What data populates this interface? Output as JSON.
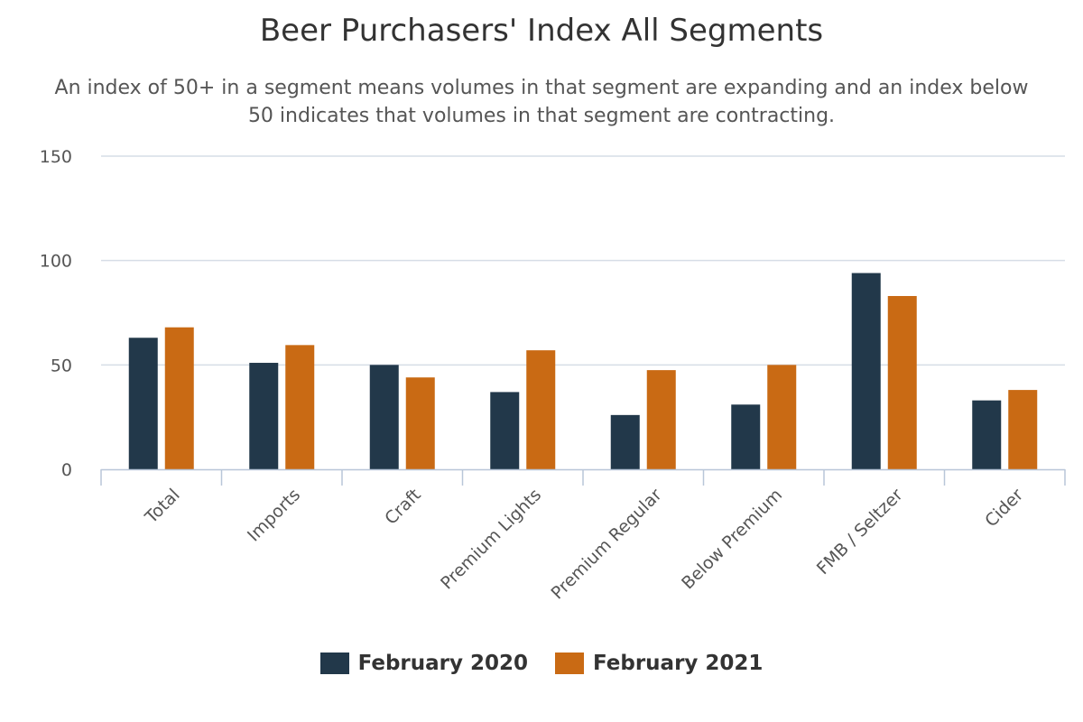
{
  "chart_data": {
    "type": "bar",
    "title": "Beer Purchasers' Index All Segments",
    "subtitle": "An index of 50+ in a segment means volumes in that segment are expanding and an index below 50 indicates that volumes in that segment are contracting.",
    "categories": [
      "Total",
      "Imports",
      "Craft",
      "Premium Lights",
      "Premium Regular",
      "Below Premium",
      "FMB / Seltzer",
      "Cider"
    ],
    "series": [
      {
        "name": "February 2020",
        "color": "#22384a",
        "values": [
          63,
          51,
          50,
          37,
          26,
          31,
          94,
          33
        ]
      },
      {
        "name": "February 2021",
        "color": "#c96a14",
        "values": [
          68,
          59.5,
          44,
          57,
          47.5,
          50,
          83,
          38
        ]
      }
    ],
    "ylim": [
      0,
      150
    ],
    "yticks": [
      0,
      50,
      100,
      150
    ],
    "grid": true,
    "legend_position": "bottom-center"
  }
}
